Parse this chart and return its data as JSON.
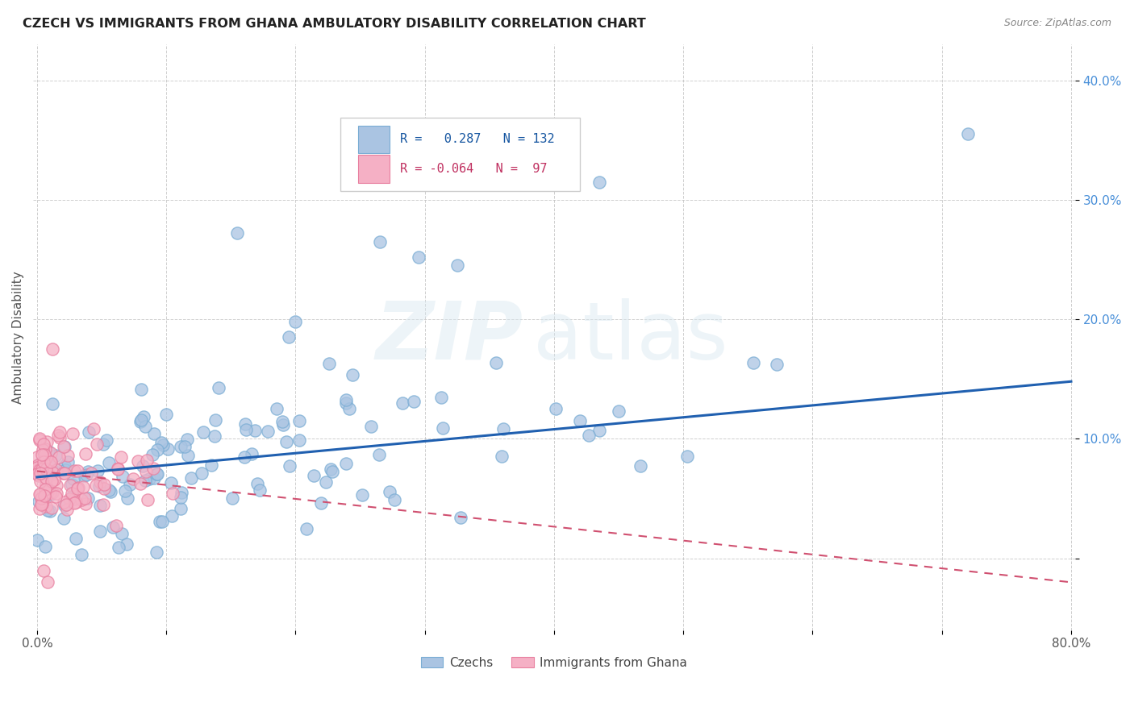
{
  "title": "CZECH VS IMMIGRANTS FROM GHANA AMBULATORY DISABILITY CORRELATION CHART",
  "source": "Source: ZipAtlas.com",
  "ylabel": "Ambulatory Disability",
  "watermark_zip": "ZIP",
  "watermark_atlas": "atlas",
  "x_min": 0.0,
  "x_max": 0.8,
  "y_min": -0.06,
  "y_max": 0.43,
  "legend_czech_r": "0.287",
  "legend_czech_n": "132",
  "legend_ghana_r": "-0.064",
  "legend_ghana_n": "97",
  "czech_color": "#aac4e2",
  "czech_edge_color": "#7aadd4",
  "ghana_color": "#f5b0c5",
  "ghana_edge_color": "#e880a0",
  "czech_line_color": "#2060b0",
  "ghana_line_color": "#d05070",
  "background_color": "#ffffff",
  "grid_color": "#bbbbbb",
  "title_color": "#222222",
  "source_color": "#888888",
  "ylabel_color": "#555555",
  "tick_color_y": "#4a90d9",
  "tick_color_x": "#555555",
  "czech_line_y0": 0.068,
  "czech_line_y1": 0.148,
  "ghana_line_y0": 0.073,
  "ghana_line_y1": -0.02
}
